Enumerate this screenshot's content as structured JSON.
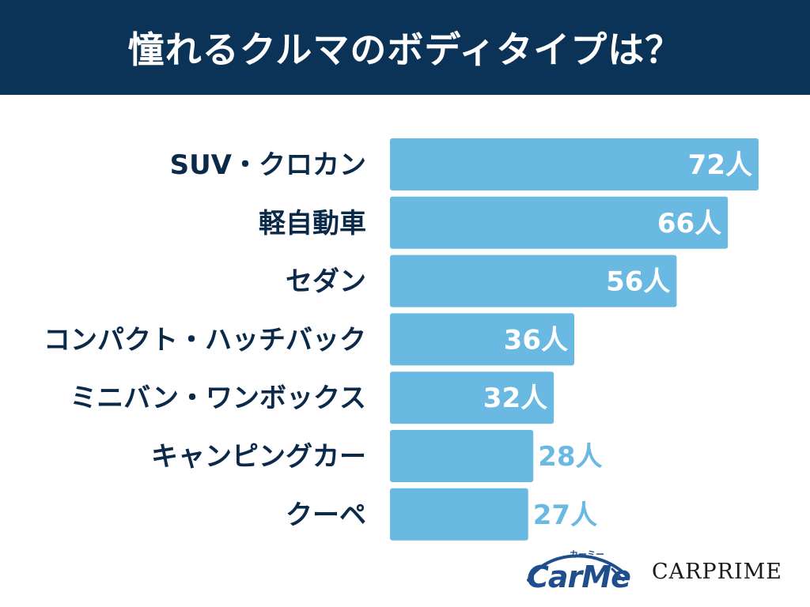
{
  "header": {
    "title": "憧れるクルマのボディタイプは？"
  },
  "chart_data": {
    "type": "bar",
    "orientation": "horizontal",
    "title": "憧れるクルマのボディタイプは？",
    "categories": [
      "SUV・クロカン",
      "軽自動車",
      "セダン",
      "コンパクト・ハッチバック",
      "ミニバン・ワンボックス",
      "キャンピングカー",
      "クーペ"
    ],
    "values": [
      72,
      66,
      56,
      36,
      32,
      28,
      27
    ],
    "value_labels": [
      "72人",
      "66人",
      "56人",
      "36人",
      "32人",
      "28人",
      "27人"
    ],
    "unit": "人",
    "xlim": [
      0,
      72
    ],
    "grid": false,
    "bar_color": "#69b9e3",
    "label_inside_color": "#ffffff",
    "label_outside_color": "#69b9e3"
  },
  "logos": {
    "carme": "CarMe",
    "carme_kana": "カーミー",
    "carprime": "CARPRIME"
  },
  "colors": {
    "header_bg": "#0b3257",
    "category_text": "#0b2a4a"
  }
}
